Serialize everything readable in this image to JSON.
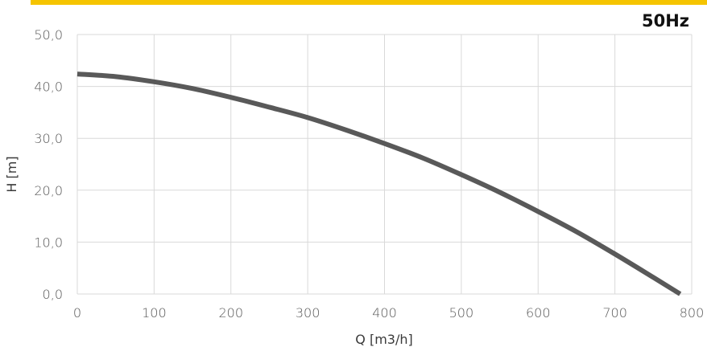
{
  "colors": {
    "accent_bar": "#f5c400",
    "grid": "#d9d9d9",
    "curve": "#595959"
  },
  "badge": {
    "text": "50Hz"
  },
  "chart_data": {
    "type": "line",
    "title": "",
    "xlabel": "Q [m3/h]",
    "ylabel": "H [m]",
    "xlim": [
      0,
      800
    ],
    "ylim": [
      0,
      50
    ],
    "grid": true,
    "legend": "none",
    "x_ticks": [
      "0",
      "100",
      "200",
      "300",
      "400",
      "500",
      "600",
      "700",
      "800"
    ],
    "y_ticks": [
      "0,0",
      "10,0",
      "20,0",
      "30,0",
      "40,0",
      "50,0"
    ],
    "series": [
      {
        "x": [
          0,
          50,
          100,
          150,
          200,
          250,
          300,
          350,
          400,
          450,
          500,
          550,
          600,
          650,
          700,
          750,
          785
        ],
        "y": [
          42.4,
          41.9,
          40.9,
          39.6,
          37.9,
          36.0,
          34.0,
          31.6,
          29.0,
          26.2,
          23.0,
          19.6,
          15.9,
          12.0,
          7.7,
          3.2,
          0.0
        ]
      }
    ]
  }
}
